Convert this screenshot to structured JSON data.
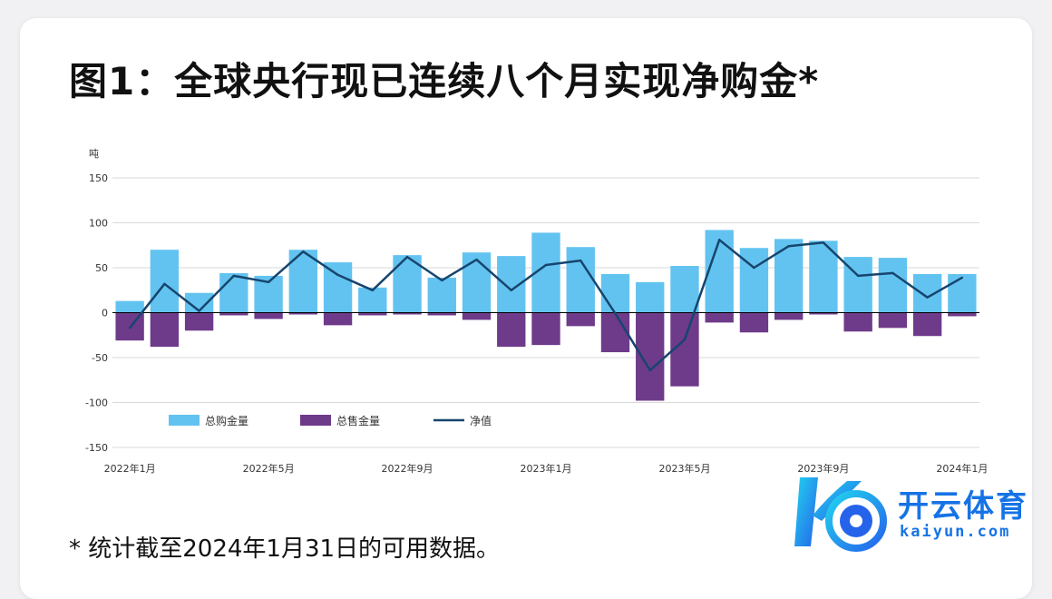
{
  "title": "图1：全球央行现已连续八个月实现净购金*",
  "footnote": "* 统计截至2024年1月31日的可用数据。",
  "logo": {
    "cn": "开云体育",
    "en": "kaiyun.com"
  },
  "colors": {
    "purchases": "#62c3f0",
    "sales": "#6e3a8a",
    "net": "#17456e",
    "axis": "#000000",
    "grid": "#d9d9d9"
  },
  "chart_data": {
    "type": "bar",
    "unit_label": "吨",
    "ylim": [
      -150,
      150
    ],
    "yticks": [
      150,
      100,
      50,
      0,
      -50,
      -100,
      -150
    ],
    "grid": true,
    "legend_position": "bottom-left",
    "x_tick_labels": [
      {
        "index": 0,
        "label": "2022年1月"
      },
      {
        "index": 4,
        "label": "2022年5月"
      },
      {
        "index": 8,
        "label": "2022年9月"
      },
      {
        "index": 12,
        "label": "2023年1月"
      },
      {
        "index": 16,
        "label": "2023年5月"
      },
      {
        "index": 20,
        "label": "2023年9月"
      },
      {
        "index": 24,
        "label": "2024年1月"
      }
    ],
    "series": [
      {
        "name": "总购金量",
        "type": "bar",
        "values": [
          13,
          70,
          22,
          44,
          41,
          70,
          56,
          28,
          64,
          39,
          67,
          63,
          89,
          73,
          43,
          34,
          52,
          92,
          72,
          82,
          80,
          62,
          61,
          43,
          43
        ]
      },
      {
        "name": "总售金量",
        "type": "bar",
        "values": [
          -31,
          -38,
          -20,
          -3,
          -7,
          -2,
          -14,
          -3,
          -2,
          -3,
          -8,
          -38,
          -36,
          -15,
          -44,
          -98,
          -82,
          -11,
          -22,
          -8,
          -2,
          -21,
          -17,
          -26,
          -4
        ]
      },
      {
        "name": "净值",
        "type": "line",
        "values": [
          -17,
          32,
          2,
          41,
          34,
          68,
          42,
          25,
          62,
          36,
          59,
          25,
          53,
          58,
          -1,
          -64,
          -30,
          81,
          50,
          74,
          78,
          41,
          44,
          17,
          39
        ]
      }
    ]
  }
}
